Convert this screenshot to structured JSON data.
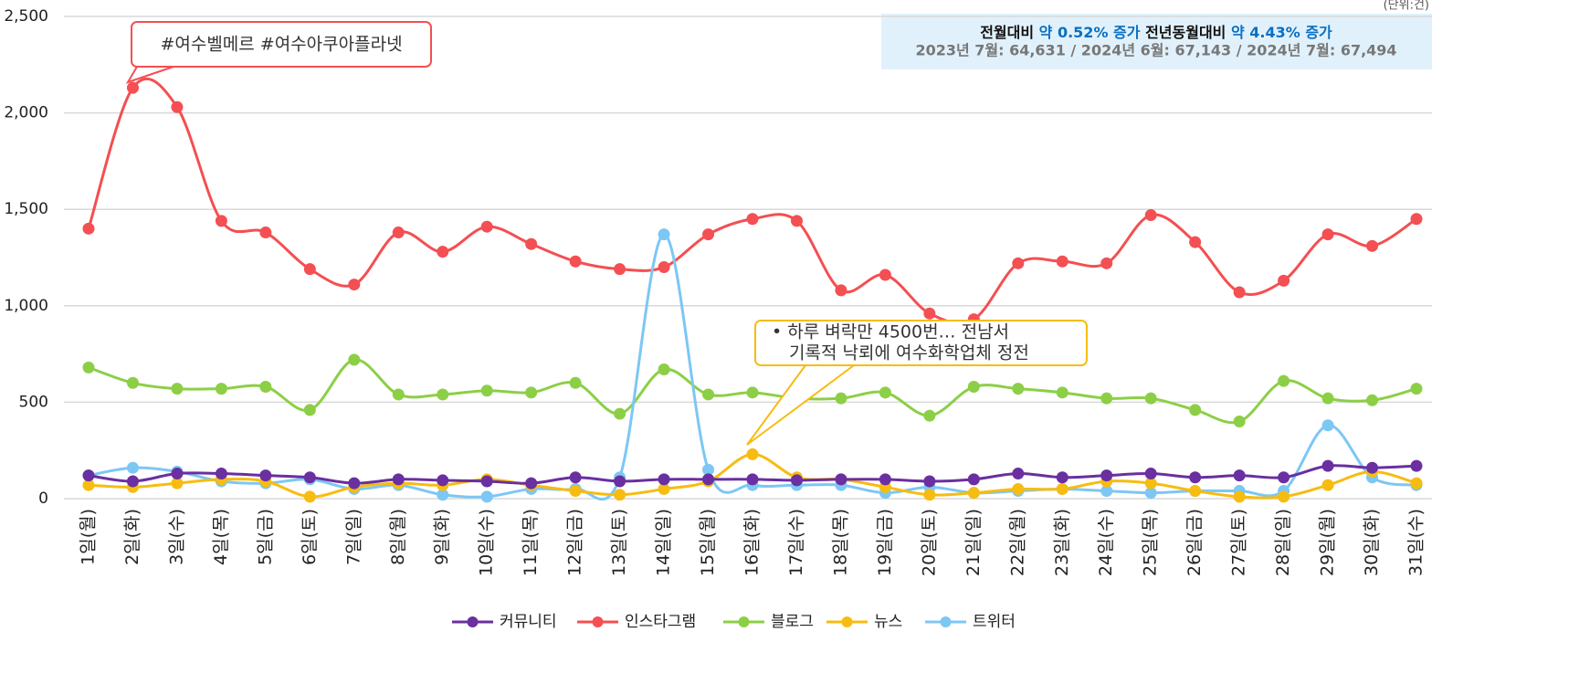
{
  "chart_data": {
    "type": "line",
    "unit_label": "(단위:건)",
    "summary": {
      "line1": [
        "전월대비",
        "약 0.52% 증가",
        "전년동월대비",
        "약 4.43% 증가"
      ],
      "line2": "2023년 7월: 64,631 / 2024년 6월: 67,143 / 2024년 7월: 67,494"
    },
    "annotations": [
      {
        "text": [
          "#여수벨메르 #여수아쿠아플라넷"
        ]
      },
      {
        "text": [
          "• 하루 벼락만 4500번… 전남서",
          "기록적 낙뢰에 여수화학업체 정전"
        ]
      }
    ],
    "categories": [
      "1일(월)",
      "2일(화)",
      "3일(수)",
      "4일(목)",
      "5일(금)",
      "6일(토)",
      "7일(일)",
      "8일(월)",
      "9일(화)",
      "10일(수)",
      "11일(목)",
      "12일(금)",
      "13일(토)",
      "14일(일)",
      "15일(월)",
      "16일(화)",
      "17일(수)",
      "18일(목)",
      "19일(금)",
      "20일(토)",
      "21일(일)",
      "22일(월)",
      "23일(화)",
      "24일(수)",
      "25일(목)",
      "26일(금)",
      "27일(토)",
      "28일(일)",
      "29일(월)",
      "30일(화)",
      "31일(수)"
    ],
    "series": [
      {
        "name": "커뮤니티",
        "color": "#6a2fa0",
        "values": [
          120,
          90,
          130,
          130,
          120,
          110,
          80,
          100,
          95,
          90,
          80,
          110,
          90,
          100,
          100,
          100,
          95,
          100,
          100,
          90,
          100,
          130,
          110,
          120,
          130,
          110,
          120,
          110,
          170,
          160,
          170
        ]
      },
      {
        "name": "인스타그램",
        "color": "#f44f52",
        "values": [
          1400,
          2130,
          2030,
          1440,
          1380,
          1190,
          1110,
          1380,
          1280,
          1410,
          1320,
          1230,
          1190,
          1200,
          1370,
          1450,
          1440,
          1080,
          1160,
          960,
          930,
          1220,
          1230,
          1220,
          1470,
          1330,
          1070,
          1130,
          1370,
          1310,
          1450
        ]
      },
      {
        "name": "블로그",
        "color": "#8ccf46",
        "values": [
          680,
          600,
          570,
          570,
          580,
          460,
          720,
          540,
          540,
          560,
          550,
          600,
          440,
          670,
          540,
          550,
          520,
          520,
          550,
          430,
          580,
          570,
          550,
          520,
          520,
          460,
          400,
          610,
          520,
          510,
          570
        ]
      },
      {
        "name": "뉴스",
        "color": "#f7bc10",
        "values": [
          70,
          60,
          80,
          100,
          90,
          10,
          60,
          80,
          70,
          100,
          70,
          40,
          20,
          50,
          90,
          230,
          110,
          100,
          60,
          20,
          30,
          50,
          50,
          90,
          80,
          40,
          10,
          10,
          70,
          140,
          80
        ]
      },
      {
        "name": "트위터",
        "color": "#7cc7f4",
        "values": [
          120,
          160,
          140,
          90,
          80,
          100,
          50,
          70,
          20,
          10,
          50,
          50,
          110,
          1370,
          150,
          70,
          70,
          70,
          30,
          60,
          30,
          40,
          50,
          40,
          30,
          40,
          40,
          40,
          380,
          110,
          70
        ]
      }
    ],
    "ylim": [
      0,
      2500
    ],
    "yticks": [
      0,
      {
        "value": 500,
        "label": "500"
      },
      {
        "value": 1000,
        "label": "1,000"
      },
      {
        "value": 1500,
        "label": "1,500"
      },
      {
        "value": 2000,
        "label": "2,000"
      },
      {
        "value": 2500,
        "label": "2,500"
      }
    ],
    "grid": true,
    "legend": "bottom"
  }
}
